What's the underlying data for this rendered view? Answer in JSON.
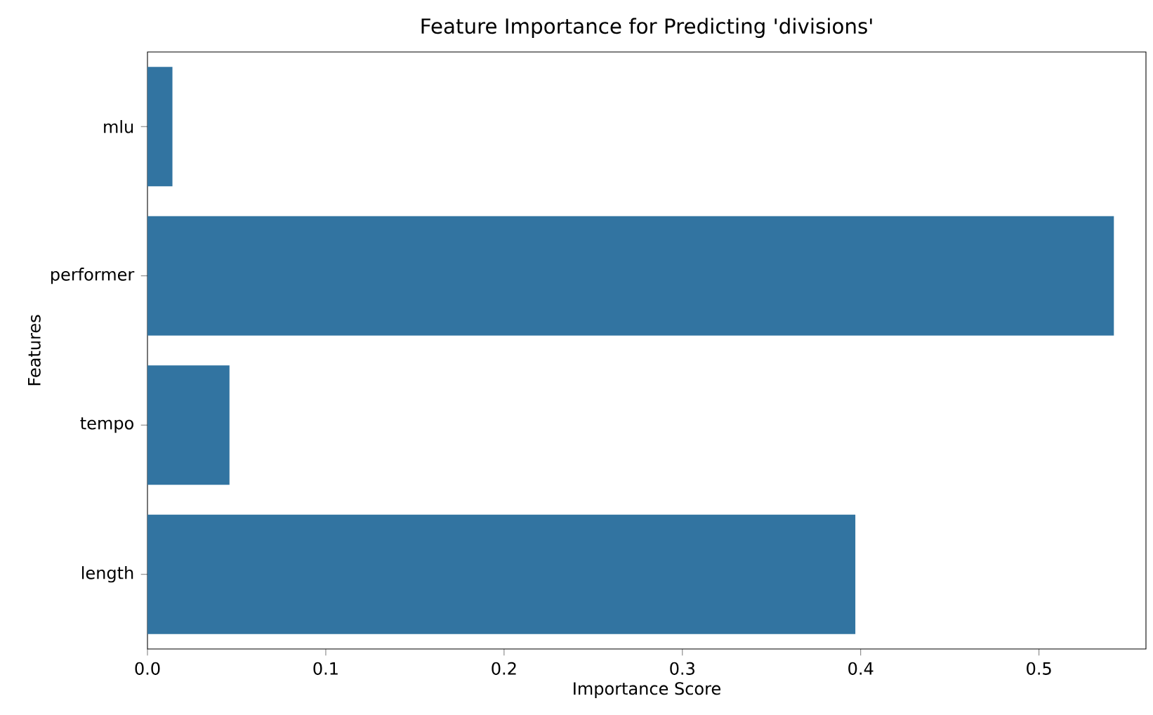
{
  "chart_data": {
    "type": "bar",
    "orientation": "horizontal",
    "title": "Feature Importance for Predicting 'divisions'",
    "xlabel": "Importance Score",
    "ylabel": "Features",
    "categories": [
      "mlu",
      "performer",
      "tempo",
      "length"
    ],
    "values": [
      0.014,
      0.542,
      0.046,
      0.397
    ],
    "color": "#3274a1",
    "xlim": [
      0,
      0.56
    ],
    "xticks": [
      {
        "value": 0,
        "label": "0.0"
      },
      0.1,
      0.2,
      0.3,
      0.4,
      0.5
    ]
  }
}
